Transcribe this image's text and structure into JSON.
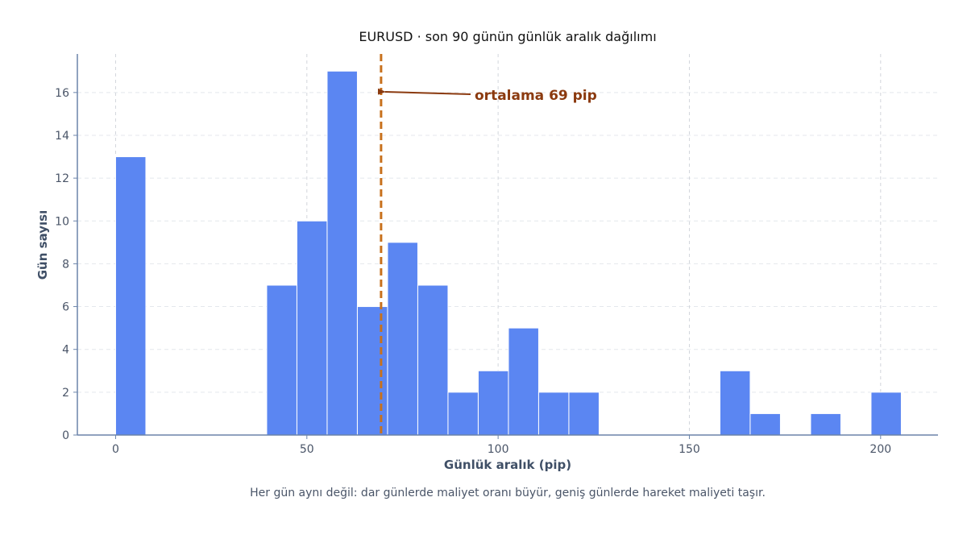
{
  "chart_data": {
    "type": "histogram",
    "title": "EURUSD · son 90 günün günlük aralık dağılımı",
    "xlabel": "Günlük aralık (pip)",
    "ylabel": "Gün sayısı",
    "caption": "Her gün aynı değil: dar günlerde maliyet oranı büyür, geniş günlerde hareket maliyeti taşır.",
    "xlim": [
      -10,
      215
    ],
    "ylim": [
      0,
      17.8
    ],
    "x_ticks": [
      0,
      50,
      100,
      150,
      200
    ],
    "y_ticks": [
      0,
      2,
      4,
      6,
      8,
      10,
      12,
      14,
      16
    ],
    "grid": {
      "x": true,
      "y": true,
      "style": "dashed"
    },
    "bins": [
      {
        "start": 0.0,
        "end": 7.9,
        "count": 13
      },
      {
        "start": 39.5,
        "end": 47.4,
        "count": 7
      },
      {
        "start": 47.4,
        "end": 55.3,
        "count": 10
      },
      {
        "start": 55.3,
        "end": 63.2,
        "count": 17
      },
      {
        "start": 63.2,
        "end": 71.1,
        "count": 6
      },
      {
        "start": 71.1,
        "end": 79.0,
        "count": 9
      },
      {
        "start": 79.0,
        "end": 86.9,
        "count": 7
      },
      {
        "start": 86.9,
        "end": 94.8,
        "count": 2
      },
      {
        "start": 94.8,
        "end": 102.7,
        "count": 3
      },
      {
        "start": 102.7,
        "end": 110.6,
        "count": 5
      },
      {
        "start": 110.6,
        "end": 118.5,
        "count": 2
      },
      {
        "start": 118.5,
        "end": 126.4,
        "count": 2
      },
      {
        "start": 158.0,
        "end": 165.9,
        "count": 3
      },
      {
        "start": 165.9,
        "end": 173.8,
        "count": 1
      },
      {
        "start": 181.7,
        "end": 189.6,
        "count": 1
      },
      {
        "start": 197.5,
        "end": 205.4,
        "count": 2
      }
    ],
    "mean": {
      "value": 69.4,
      "label": "ortalama 69 pip"
    },
    "colors": {
      "bar": "#5b86f2",
      "bar_edge": "#ffffff",
      "mean_line": "#c8711d",
      "annotation": "#8b3a0f",
      "axis": "#6b84aa",
      "tick_text": "#4a5568",
      "label_text": "#3f4f66",
      "title_text": "#111111",
      "grid": "#d3d6dc"
    }
  }
}
